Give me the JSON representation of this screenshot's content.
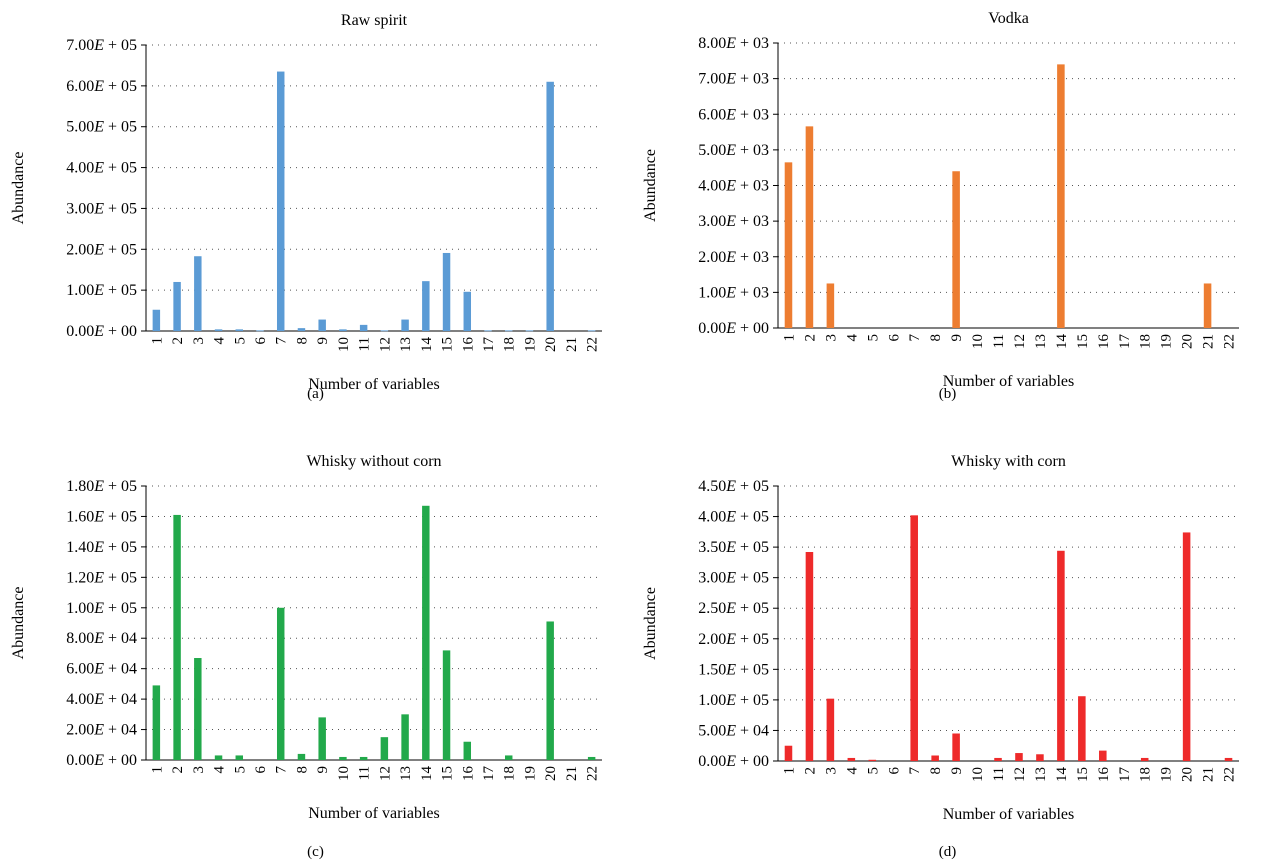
{
  "chart_data": [
    {
      "type": "bar",
      "title": "Raw spirit",
      "xlabel": "Number of variables",
      "ylabel": "Abundance",
      "caption": "(a)",
      "color": "#5b9bd5",
      "ylim": [
        0,
        700000
      ],
      "yticks": [
        0,
        100000,
        200000,
        300000,
        400000,
        500000,
        600000,
        700000
      ],
      "ytick_labels": [
        {
          "m": "0.00",
          "e": "+ 00"
        },
        {
          "m": "1.00",
          "e": "+ 05"
        },
        {
          "m": "2.00",
          "e": "+ 05"
        },
        {
          "m": "3.00",
          "e": "+ 05"
        },
        {
          "m": "4.00",
          "e": "+ 05"
        },
        {
          "m": "5.00",
          "e": "+ 05"
        },
        {
          "m": "6.00",
          "e": "+ 05"
        },
        {
          "m": "7.00",
          "e": "+ 05"
        }
      ],
      "categories": [
        "1",
        "2",
        "3",
        "4",
        "5",
        "6",
        "7",
        "8",
        "9",
        "10",
        "11",
        "12",
        "13",
        "14",
        "15",
        "16",
        "17",
        "18",
        "19",
        "20",
        "21",
        "22"
      ],
      "values": [
        52000,
        120000,
        183000,
        4000,
        4000,
        1500,
        635000,
        7000,
        28000,
        4000,
        15000,
        1500,
        28000,
        122000,
        191000,
        96000,
        1500,
        1500,
        1500,
        610000,
        0,
        1500
      ],
      "grid": "dotted-horizontal"
    },
    {
      "type": "bar",
      "title": "Vodka",
      "xlabel": "Number of variables",
      "ylabel": "Abundance",
      "caption": "(b)",
      "color": "#ed7d31",
      "ylim": [
        0,
        8000
      ],
      "yticks": [
        0,
        1000,
        2000,
        3000,
        4000,
        5000,
        6000,
        7000,
        8000
      ],
      "ytick_labels": [
        {
          "m": "0.00",
          "e": "+ 00"
        },
        {
          "m": "1.00",
          "e": "+ 03"
        },
        {
          "m": "2.00",
          "e": "+ 03"
        },
        {
          "m": "3.00",
          "e": "+ 03"
        },
        {
          "m": "4.00",
          "e": "+ 03"
        },
        {
          "m": "5.00",
          "e": "+ 03"
        },
        {
          "m": "6.00",
          "e": "+ 03"
        },
        {
          "m": "7.00",
          "e": "+ 03"
        },
        {
          "m": "8.00",
          "e": "+ 03"
        }
      ],
      "categories": [
        "1",
        "2",
        "3",
        "4",
        "5",
        "6",
        "7",
        "8",
        "9",
        "10",
        "11",
        "12",
        "13",
        "14",
        "15",
        "16",
        "17",
        "18",
        "19",
        "20",
        "21",
        "22"
      ],
      "values": [
        4650,
        5660,
        1250,
        0,
        0,
        0,
        0,
        0,
        4400,
        0,
        0,
        0,
        0,
        7400,
        0,
        0,
        0,
        0,
        0,
        0,
        1250,
        0
      ],
      "grid": "dotted-horizontal"
    },
    {
      "type": "bar",
      "title": "Whisky without corn",
      "xlabel": "Number of variables",
      "ylabel": "Abundance",
      "caption": "(c)",
      "color": "#22a94b",
      "ylim": [
        0,
        180000
      ],
      "yticks": [
        0,
        20000,
        40000,
        60000,
        80000,
        100000,
        120000,
        140000,
        160000,
        180000
      ],
      "ytick_labels": [
        {
          "m": "0.00",
          "e": "+ 00"
        },
        {
          "m": "2.00",
          "e": "+ 04"
        },
        {
          "m": "4.00",
          "e": "+ 04"
        },
        {
          "m": "6.00",
          "e": "+ 04"
        },
        {
          "m": "8.00",
          "e": "+ 04"
        },
        {
          "m": "1.00",
          "e": "+ 05"
        },
        {
          "m": "1.20",
          "e": "+ 05"
        },
        {
          "m": "1.40",
          "e": "+ 05"
        },
        {
          "m": "1.60",
          "e": "+ 05"
        },
        {
          "m": "1.80",
          "e": "+ 05"
        }
      ],
      "categories": [
        "1",
        "2",
        "3",
        "4",
        "5",
        "6",
        "7",
        "8",
        "9",
        "10",
        "11",
        "12",
        "13",
        "14",
        "15",
        "16",
        "17",
        "18",
        "19",
        "20",
        "21",
        "22"
      ],
      "values": [
        49000,
        161000,
        67000,
        3000,
        3000,
        0,
        100000,
        4000,
        28000,
        2000,
        2000,
        15000,
        30000,
        167000,
        72000,
        12000,
        0,
        3000,
        0,
        91000,
        0,
        2000
      ],
      "grid": "dotted-horizontal"
    },
    {
      "type": "bar",
      "title": "Whisky with corn",
      "xlabel": "Number of variables",
      "ylabel": "Abundance",
      "caption": "(d)",
      "color": "#ee2a2a",
      "ylim": [
        0,
        450000
      ],
      "yticks": [
        0,
        50000,
        100000,
        150000,
        200000,
        250000,
        300000,
        350000,
        400000,
        450000
      ],
      "ytick_labels": [
        {
          "m": "0.00",
          "e": "+ 00"
        },
        {
          "m": "5.00",
          "e": "+ 04"
        },
        {
          "m": "1.00",
          "e": "+ 05"
        },
        {
          "m": "1.50",
          "e": "+ 05"
        },
        {
          "m": "2.00",
          "e": "+ 05"
        },
        {
          "m": "2.50",
          "e": "+ 05"
        },
        {
          "m": "3.00",
          "e": "+ 05"
        },
        {
          "m": "3.50",
          "e": "+ 05"
        },
        {
          "m": "4.00",
          "e": "+ 05"
        },
        {
          "m": "4.50",
          "e": "+ 05"
        }
      ],
      "categories": [
        "1",
        "2",
        "3",
        "4",
        "5",
        "6",
        "7",
        "8",
        "9",
        "10",
        "11",
        "12",
        "13",
        "14",
        "15",
        "16",
        "17",
        "18",
        "19",
        "20",
        "21",
        "22"
      ],
      "values": [
        25000,
        342000,
        102000,
        5000,
        2000,
        0,
        402000,
        9000,
        45000,
        0,
        5000,
        13000,
        11000,
        344000,
        106000,
        17000,
        0,
        5000,
        0,
        374000,
        0,
        5000
      ],
      "grid": "dotted-horizontal"
    }
  ]
}
